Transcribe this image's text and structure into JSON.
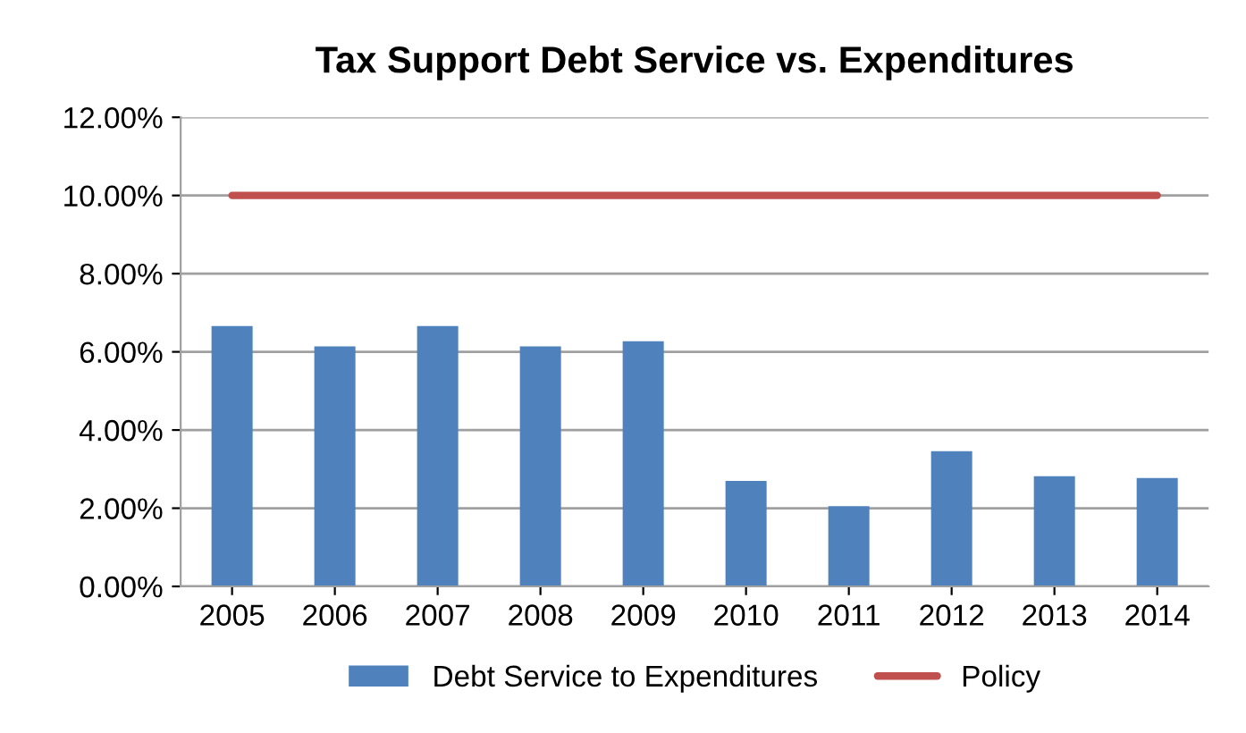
{
  "chart_data": {
    "type": "bar",
    "title": "Tax Support Debt Service vs. Expenditures",
    "categories": [
      "2005",
      "2006",
      "2007",
      "2008",
      "2009",
      "2010",
      "2011",
      "2012",
      "2013",
      "2014"
    ],
    "series": [
      {
        "name": "Debt Service to Expenditures",
        "color": "#4f81bd",
        "values": [
          6.66,
          6.14,
          6.66,
          6.14,
          6.27,
          2.7,
          2.05,
          3.46,
          2.82,
          2.77
        ]
      },
      {
        "name": "Policy",
        "type": "line",
        "color": "#c0504d",
        "values": [
          10,
          10,
          10,
          10,
          10,
          10,
          10,
          10,
          10,
          10
        ]
      }
    ],
    "ylim": [
      0,
      12
    ],
    "yticks": [
      {
        "value": 0,
        "label": "0.00%"
      },
      {
        "value": 2,
        "label": "2.00%"
      },
      {
        "value": 4,
        "label": "4.00%"
      },
      {
        "value": 6,
        "label": "6.00%"
      },
      {
        "value": 8,
        "label": "8.00%"
      },
      {
        "value": 10,
        "label": "10.00%"
      },
      {
        "value": 12,
        "label": "12.00%"
      }
    ],
    "grid": "y",
    "legend": "bottom"
  }
}
